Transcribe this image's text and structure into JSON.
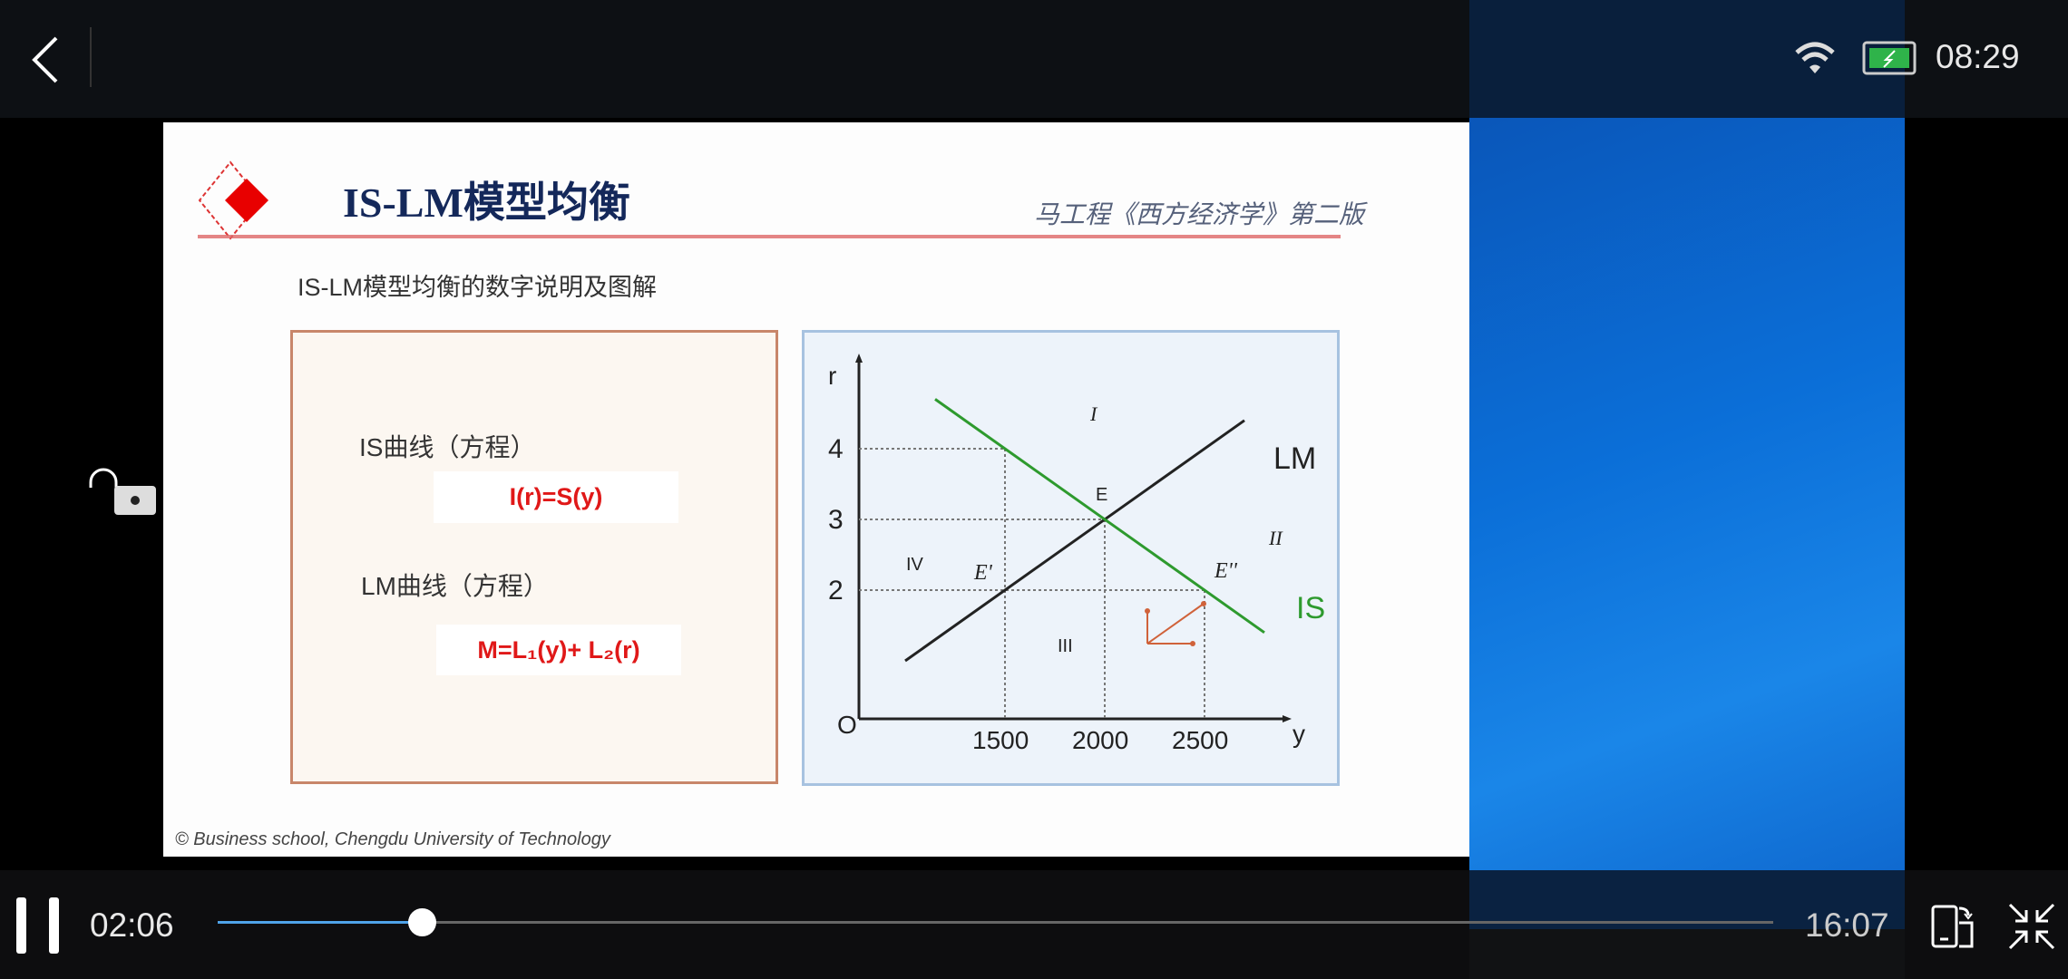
{
  "status_bar": {
    "clock": "08:29",
    "wifi_icon": "wifi-icon",
    "battery_icon": "battery-charging-icon"
  },
  "player": {
    "elapsed": "02:06",
    "duration": "16:07",
    "progress_percent": 13.1,
    "accent": "#4fa3e8"
  },
  "slide": {
    "title": "IS-LM模型均衡",
    "source": "马工程《西方经济学》第二版",
    "subtitle": "IS-LM模型均衡的数字说明及图解",
    "is_label": "IS曲线（方程）",
    "is_equation": "I(r)=S(y)",
    "lm_label": "LM曲线（方程）",
    "lm_equation": "M=L₁(y)+ L₂(r)",
    "footer": "© Business school, Chengdu University of Technology",
    "diagram": {
      "y_axis_label": "r",
      "x_axis_label": "y",
      "origin_label": "O",
      "r_ticks": [
        "4",
        "3",
        "2"
      ],
      "y_ticks": [
        "1500",
        "2000",
        "2500"
      ],
      "lm_label": "LM",
      "is_label": "IS",
      "lm_line": [
        [
          1000,
          1
        ],
        [
          2700,
          4.4
        ]
      ],
      "is_line": [
        [
          1150,
          4.7
        ],
        [
          2800,
          1.4
        ]
      ],
      "points": [
        {
          "label": "E",
          "y": 2000,
          "r": 3
        },
        {
          "label": "E'",
          "y": 1500,
          "r": 2
        },
        {
          "label": "E''",
          "y": 2500,
          "r": 2
        }
      ],
      "regions": {
        "i": "I",
        "ii": "II",
        "iii": "III",
        "iv": "IV"
      },
      "is_color": "#2e9a2e",
      "lm_color": "#222222",
      "arrow_color": "#d0623a"
    }
  }
}
